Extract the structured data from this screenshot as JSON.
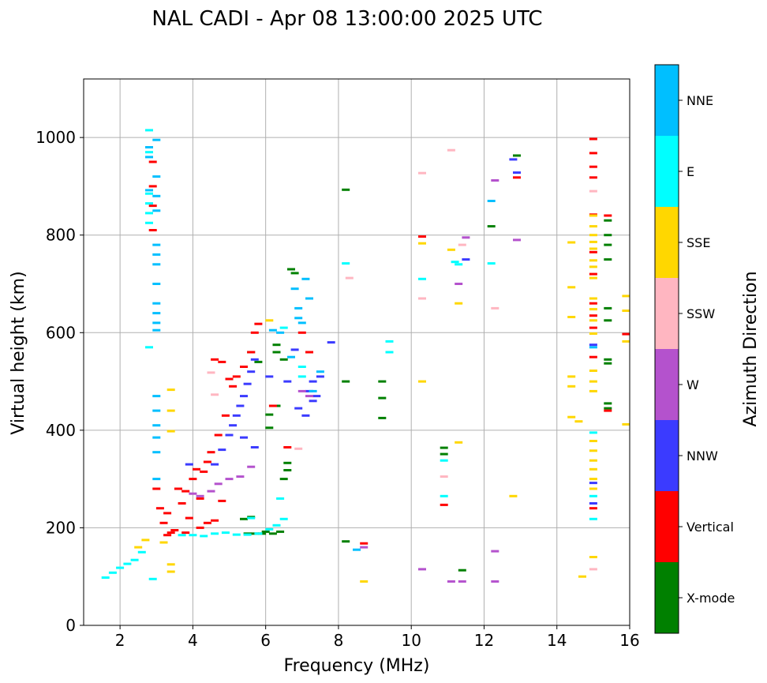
{
  "chart_data": {
    "type": "scatter",
    "title": "NAL CADI - Apr 08 13:00:00 2025 UTC",
    "xlabel": "Frequency (MHz)",
    "ylabel": "Virtual height (km)",
    "xlim": [
      1.0,
      16.0
    ],
    "ylim": [
      0,
      1120
    ],
    "xticks": [
      2,
      4,
      6,
      8,
      10,
      12,
      14,
      16
    ],
    "yticks": [
      0,
      200,
      400,
      600,
      800,
      1000
    ],
    "grid": true,
    "colorbar": {
      "label": "Azimuth Direction",
      "entries": [
        {
          "name": "X-mode",
          "color": "#008000"
        },
        {
          "name": "Vertical",
          "color": "#ff0000"
        },
        {
          "name": "NNW",
          "color": "#3b3bff"
        },
        {
          "name": "W",
          "color": "#b452cd"
        },
        {
          "name": "SSW",
          "color": "#ffb6c1"
        },
        {
          "name": "SSE",
          "color": "#ffd700"
        },
        {
          "name": "E",
          "color": "#00ffff"
        },
        {
          "name": "NNE",
          "color": "#00bfff"
        }
      ]
    },
    "series": [
      {
        "name": "X-mode",
        "points": [
          [
            6.3,
            575
          ],
          [
            6.3,
            560
          ],
          [
            6.5,
            545
          ],
          [
            6.6,
            333
          ],
          [
            6.6,
            318
          ],
          [
            6.5,
            300
          ],
          [
            6.1,
            432
          ],
          [
            6.1,
            405
          ],
          [
            6.3,
            450
          ],
          [
            6.7,
            730
          ],
          [
            6.8,
            722
          ],
          [
            5.6,
            560
          ],
          [
            5.8,
            540
          ],
          [
            6.4,
            192
          ],
          [
            6.2,
            188
          ],
          [
            6.0,
            192
          ],
          [
            5.9,
            188
          ],
          [
            5.7,
            188
          ],
          [
            5.5,
            188
          ],
          [
            5.6,
            222
          ],
          [
            5.4,
            218
          ],
          [
            8.2,
            500
          ],
          [
            8.2,
            893
          ],
          [
            8.2,
            172
          ],
          [
            9.2,
            500
          ],
          [
            9.2,
            466
          ],
          [
            9.2,
            425
          ],
          [
            10.9,
            364
          ],
          [
            10.9,
            351
          ],
          [
            12.2,
            818
          ],
          [
            11.4,
            113
          ],
          [
            15.4,
            445
          ],
          [
            15.4,
            455
          ],
          [
            15.4,
            537
          ],
          [
            15.4,
            545
          ],
          [
            15.4,
            625
          ],
          [
            15.4,
            650
          ],
          [
            15.4,
            750
          ],
          [
            15.4,
            780
          ],
          [
            15.4,
            800
          ],
          [
            15.4,
            830
          ],
          [
            12.9,
            963
          ]
        ]
      },
      {
        "name": "Vertical",
        "points": [
          [
            3.0,
            280
          ],
          [
            3.1,
            240
          ],
          [
            3.2,
            210
          ],
          [
            3.3,
            230
          ],
          [
            3.4,
            190
          ],
          [
            3.6,
            280
          ],
          [
            3.7,
            250
          ],
          [
            3.8,
            275
          ],
          [
            3.9,
            220
          ],
          [
            4.0,
            300
          ],
          [
            4.1,
            320
          ],
          [
            4.2,
            260
          ],
          [
            4.3,
            315
          ],
          [
            4.4,
            335
          ],
          [
            4.5,
            355
          ],
          [
            4.7,
            390
          ],
          [
            4.9,
            430
          ],
          [
            5.1,
            490
          ],
          [
            5.2,
            510
          ],
          [
            5.4,
            530
          ],
          [
            5.6,
            560
          ],
          [
            5.7,
            600
          ],
          [
            5.8,
            618
          ],
          [
            4.6,
            545
          ],
          [
            4.8,
            540
          ],
          [
            5.0,
            505
          ],
          [
            4.2,
            200
          ],
          [
            4.4,
            210
          ],
          [
            4.6,
            215
          ],
          [
            4.8,
            255
          ],
          [
            3.5,
            195
          ],
          [
            3.8,
            190
          ],
          [
            3.3,
            185
          ],
          [
            2.9,
            950
          ],
          [
            2.9,
            900
          ],
          [
            2.9,
            860
          ],
          [
            2.9,
            810
          ],
          [
            6.2,
            450
          ],
          [
            6.6,
            365
          ],
          [
            7.0,
            600
          ],
          [
            7.2,
            560
          ],
          [
            8.7,
            168
          ],
          [
            10.3,
            797
          ],
          [
            10.9,
            247
          ],
          [
            12.9,
            918
          ],
          [
            15.0,
            997
          ],
          [
            15.0,
            968
          ],
          [
            15.0,
            940
          ],
          [
            15.0,
            918
          ],
          [
            15.0,
            842
          ],
          [
            15.0,
            765
          ],
          [
            15.0,
            720
          ],
          [
            15.0,
            660
          ],
          [
            15.0,
            635
          ],
          [
            15.0,
            610
          ],
          [
            15.0,
            550
          ],
          [
            15.4,
            840
          ],
          [
            15.4,
            440
          ],
          [
            15.9,
            597
          ],
          [
            15.0,
            240
          ]
        ]
      },
      {
        "name": "NNW",
        "points": [
          [
            4.6,
            330
          ],
          [
            4.8,
            360
          ],
          [
            5.0,
            390
          ],
          [
            5.1,
            410
          ],
          [
            5.2,
            430
          ],
          [
            5.3,
            450
          ],
          [
            5.4,
            470
          ],
          [
            5.5,
            495
          ],
          [
            5.6,
            520
          ],
          [
            5.7,
            545
          ],
          [
            6.1,
            510
          ],
          [
            6.6,
            500
          ],
          [
            6.9,
            445
          ],
          [
            7.1,
            430
          ],
          [
            7.2,
            480
          ],
          [
            7.3,
            500
          ],
          [
            7.4,
            470
          ],
          [
            7.3,
            460
          ],
          [
            7.5,
            510
          ],
          [
            5.4,
            385
          ],
          [
            5.7,
            365
          ],
          [
            6.8,
            565
          ],
          [
            7.8,
            580
          ],
          [
            12.8,
            955
          ],
          [
            12.9,
            928
          ],
          [
            15.0,
            575
          ],
          [
            15.0,
            292
          ],
          [
            15.0,
            250
          ],
          [
            11.5,
            750
          ],
          [
            3.9,
            330
          ]
        ]
      },
      {
        "name": "W",
        "points": [
          [
            4.0,
            270
          ],
          [
            4.2,
            265
          ],
          [
            4.5,
            275
          ],
          [
            4.7,
            290
          ],
          [
            5.0,
            300
          ],
          [
            5.3,
            305
          ],
          [
            5.6,
            325
          ],
          [
            7.0,
            480
          ],
          [
            7.2,
            470
          ],
          [
            8.7,
            160
          ],
          [
            11.3,
            700
          ],
          [
            11.5,
            795
          ],
          [
            12.3,
            912
          ],
          [
            12.3,
            152
          ],
          [
            12.3,
            90
          ],
          [
            12.9,
            790
          ],
          [
            10.3,
            115
          ],
          [
            11.1,
            90
          ],
          [
            11.4,
            90
          ]
        ]
      },
      {
        "name": "SSW",
        "points": [
          [
            6.9,
            362
          ],
          [
            8.3,
            712
          ],
          [
            10.3,
            927
          ],
          [
            10.3,
            670
          ],
          [
            10.9,
            305
          ],
          [
            11.1,
            974
          ],
          [
            11.4,
            780
          ],
          [
            12.3,
            650
          ],
          [
            15.0,
            890
          ],
          [
            15.0,
            115
          ],
          [
            4.5,
            518
          ],
          [
            4.6,
            473
          ]
        ]
      },
      {
        "name": "SSE",
        "points": [
          [
            3.4,
            483
          ],
          [
            3.4,
            440
          ],
          [
            3.4,
            398
          ],
          [
            3.4,
            125
          ],
          [
            3.4,
            110
          ],
          [
            2.5,
            160
          ],
          [
            2.7,
            175
          ],
          [
            3.2,
            170
          ],
          [
            10.3,
            500
          ],
          [
            10.3,
            783
          ],
          [
            11.1,
            770
          ],
          [
            11.3,
            375
          ],
          [
            11.3,
            660
          ],
          [
            12.8,
            265
          ],
          [
            14.4,
            785
          ],
          [
            14.4,
            693
          ],
          [
            14.4,
            632
          ],
          [
            14.4,
            510
          ],
          [
            14.4,
            490
          ],
          [
            14.4,
            427
          ],
          [
            14.6,
            418
          ],
          [
            14.7,
            100
          ],
          [
            15.0,
            840
          ],
          [
            15.0,
            818
          ],
          [
            15.0,
            800
          ],
          [
            15.0,
            786
          ],
          [
            15.0,
            772
          ],
          [
            15.0,
            748
          ],
          [
            15.0,
            735
          ],
          [
            15.0,
            712
          ],
          [
            15.0,
            670
          ],
          [
            15.0,
            648
          ],
          [
            15.0,
            625
          ],
          [
            15.0,
            598
          ],
          [
            15.0,
            522
          ],
          [
            15.0,
            500
          ],
          [
            15.0,
            480
          ],
          [
            15.0,
            378
          ],
          [
            15.0,
            358
          ],
          [
            15.0,
            338
          ],
          [
            15.0,
            320
          ],
          [
            15.0,
            300
          ],
          [
            15.0,
            280
          ],
          [
            15.0,
            140
          ],
          [
            15.9,
            675
          ],
          [
            15.9,
            645
          ],
          [
            15.9,
            582
          ],
          [
            15.9,
            412
          ],
          [
            8.7,
            90
          ],
          [
            6.1,
            625
          ]
        ]
      },
      {
        "name": "E",
        "points": [
          [
            1.6,
            98
          ],
          [
            1.8,
            108
          ],
          [
            2.0,
            118
          ],
          [
            2.2,
            126
          ],
          [
            2.4,
            134
          ],
          [
            2.6,
            150
          ],
          [
            2.8,
            1015
          ],
          [
            2.8,
            970
          ],
          [
            2.8,
            885
          ],
          [
            2.8,
            865
          ],
          [
            2.8,
            845
          ],
          [
            2.8,
            825
          ],
          [
            2.8,
            570
          ],
          [
            3.7,
            185
          ],
          [
            4.0,
            185
          ],
          [
            4.3,
            183
          ],
          [
            4.6,
            188
          ],
          [
            4.9,
            190
          ],
          [
            5.2,
            186
          ],
          [
            5.5,
            186
          ],
          [
            5.8,
            188
          ],
          [
            6.1,
            197
          ],
          [
            6.3,
            205
          ],
          [
            6.5,
            218
          ],
          [
            5.6,
            220
          ],
          [
            6.4,
            260
          ],
          [
            6.5,
            610
          ],
          [
            7.0,
            530
          ],
          [
            7.0,
            510
          ],
          [
            8.2,
            742
          ],
          [
            9.4,
            582
          ],
          [
            9.4,
            560
          ],
          [
            10.3,
            710
          ],
          [
            10.9,
            338
          ],
          [
            10.9,
            265
          ],
          [
            11.2,
            745
          ],
          [
            11.3,
            740
          ],
          [
            12.2,
            742
          ],
          [
            15.0,
            265
          ],
          [
            15.0,
            218
          ],
          [
            15.0,
            395
          ],
          [
            2.9,
            95
          ]
        ]
      },
      {
        "name": "NNE",
        "points": [
          [
            2.8,
            980
          ],
          [
            2.8,
            960
          ],
          [
            2.8,
            892
          ],
          [
            3.0,
            995
          ],
          [
            3.0,
            920
          ],
          [
            3.0,
            880
          ],
          [
            3.0,
            850
          ],
          [
            3.0,
            780
          ],
          [
            3.0,
            760
          ],
          [
            3.0,
            740
          ],
          [
            3.0,
            700
          ],
          [
            3.0,
            660
          ],
          [
            3.0,
            640
          ],
          [
            3.0,
            620
          ],
          [
            3.0,
            605
          ],
          [
            3.0,
            470
          ],
          [
            3.0,
            440
          ],
          [
            3.0,
            410
          ],
          [
            3.0,
            385
          ],
          [
            3.0,
            355
          ],
          [
            3.0,
            300
          ],
          [
            6.4,
            600
          ],
          [
            6.7,
            550
          ],
          [
            6.8,
            690
          ],
          [
            6.9,
            650
          ],
          [
            7.0,
            620
          ],
          [
            7.1,
            710
          ],
          [
            7.2,
            670
          ],
          [
            6.9,
            630
          ],
          [
            7.3,
            480
          ],
          [
            7.5,
            520
          ],
          [
            8.5,
            155
          ],
          [
            12.2,
            870
          ],
          [
            6.2,
            605
          ],
          [
            15.0,
            570
          ]
        ]
      }
    ]
  }
}
